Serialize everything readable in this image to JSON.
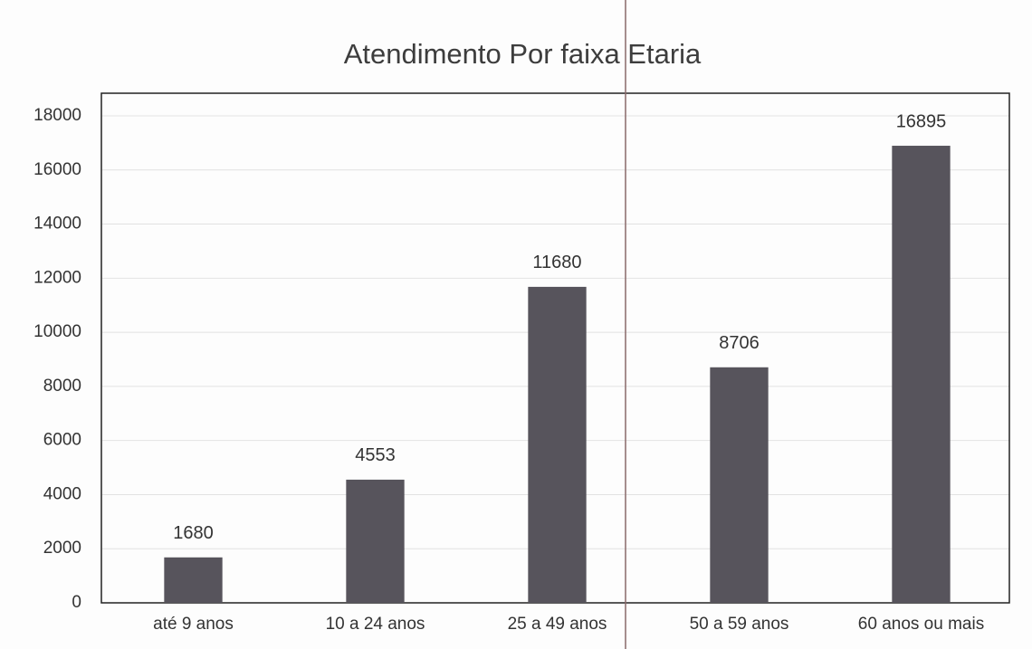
{
  "chart_data": {
    "type": "bar",
    "title": "Atendimento Por faixa Etaria",
    "categories": [
      "até 9 anos",
      "10 a 24 anos",
      "25 a 49 anos",
      "50 a 59 anos",
      "60 anos ou mais"
    ],
    "values": [
      1680,
      4553,
      11680,
      8706,
      16895
    ],
    "color": "#57545c",
    "ylim": [
      0,
      18000
    ],
    "yticks": [
      0,
      2000,
      4000,
      6000,
      8000,
      10000,
      12000,
      14000,
      16000,
      18000
    ],
    "grid": true
  }
}
